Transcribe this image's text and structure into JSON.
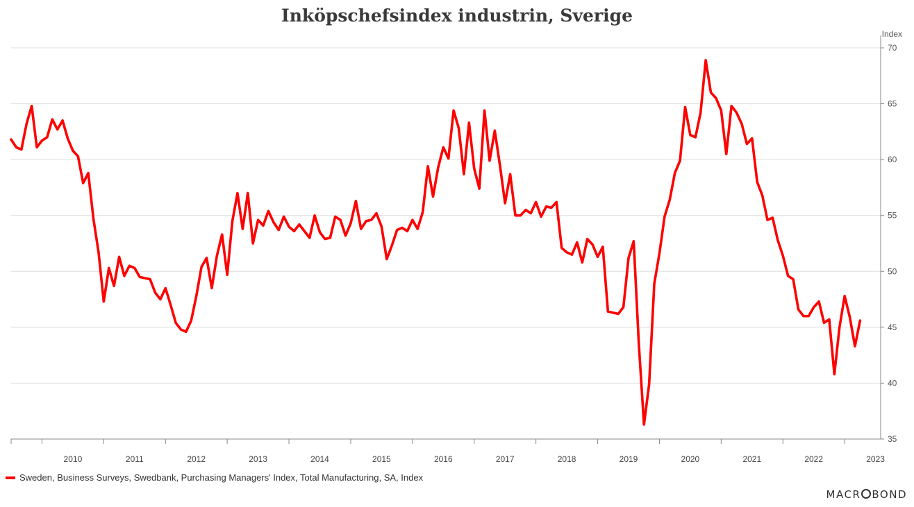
{
  "chart_data": {
    "type": "line",
    "title": "Inköpschefsindex industrin, Sverige",
    "ylabel": "Index",
    "ylim": [
      35,
      70
    ],
    "yticks": [
      35,
      40,
      45,
      50,
      55,
      60,
      65,
      70
    ],
    "xticks": [
      "2010",
      "2011",
      "2012",
      "2013",
      "2014",
      "2015",
      "2016",
      "2017",
      "2018",
      "2019",
      "2020",
      "2021",
      "2022",
      "2023"
    ],
    "xrange": [
      "2009-07",
      "2023-08"
    ],
    "grid": true,
    "series": [
      {
        "name": "Sweden, Business Surveys, Swedbank, Purchasing Managers' Index, Total Manufacturing, SA, Index",
        "color": "#ff0000",
        "start": "2009-07",
        "frequency": "monthly",
        "values": [
          61.8,
          61.1,
          60.9,
          63.2,
          64.8,
          61.1,
          61.7,
          62.0,
          63.6,
          62.7,
          63.5,
          61.9,
          60.8,
          60.3,
          57.9,
          58.8,
          54.7,
          51.7,
          47.3,
          50.3,
          48.7,
          51.3,
          49.6,
          50.5,
          50.3,
          49.5,
          49.4,
          49.3,
          48.1,
          47.5,
          48.5,
          47.0,
          45.4,
          44.8,
          44.6,
          45.6,
          47.8,
          50.4,
          51.2,
          48.5,
          51.4,
          53.3,
          49.7,
          54.5,
          57.0,
          53.8,
          57.0,
          52.5,
          54.6,
          54.1,
          55.4,
          54.4,
          53.7,
          54.9,
          54.0,
          53.6,
          54.2,
          53.6,
          53.0,
          55.0,
          53.5,
          52.9,
          53.0,
          54.9,
          54.6,
          53.2,
          54.3,
          56.3,
          53.8,
          54.5,
          54.6,
          55.2,
          54.0,
          51.1,
          52.3,
          53.7,
          53.9,
          53.6,
          54.6,
          53.8,
          55.3,
          59.4,
          56.7,
          59.3,
          61.1,
          60.1,
          64.4,
          62.8,
          58.7,
          63.3,
          59.2,
          57.4,
          64.4,
          59.9,
          62.6,
          59.5,
          56.1,
          58.7,
          55.0,
          55.0,
          55.5,
          55.2,
          56.2,
          54.9,
          55.8,
          55.7,
          56.2,
          52.1,
          51.7,
          51.5,
          52.6,
          50.8,
          52.9,
          52.4,
          51.3,
          52.2,
          46.4,
          46.3,
          46.2,
          46.8,
          51.2,
          52.7,
          43.5,
          36.3,
          39.9,
          48.9,
          51.6,
          54.9,
          56.4,
          58.8,
          59.9,
          64.7,
          62.2,
          62.0,
          64.2,
          68.9,
          66.0,
          65.5,
          64.4,
          60.5,
          64.8,
          64.2,
          63.2,
          61.4,
          61.9,
          58.0,
          56.8,
          54.6,
          54.8,
          52.8,
          51.4,
          49.6,
          49.3,
          46.6,
          46.0,
          46.0,
          46.8,
          47.3,
          45.4,
          45.7,
          40.8,
          45.0,
          47.8,
          45.9,
          43.3,
          45.6
        ]
      }
    ]
  },
  "legend": {
    "label": "Sweden, Business Surveys, Swedbank, Purchasing Managers' Index, Total Manufacturing, SA, Index"
  },
  "brand": {
    "left": "MACR",
    "right": "BOND"
  }
}
